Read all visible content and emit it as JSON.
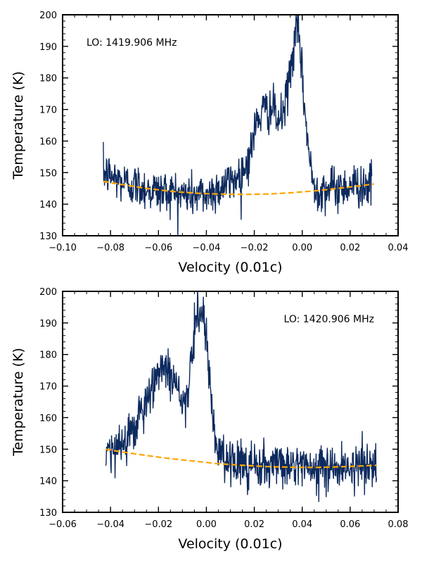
{
  "chart_data": [
    {
      "type": "line",
      "xlabel": "Velocity (0.01c)",
      "ylabel": "Temperature (K)",
      "xlim": [
        -0.1,
        0.04
      ],
      "ylim": [
        130,
        200
      ],
      "xticks": [
        "−0.10",
        "−0.08",
        "−0.06",
        "−0.04",
        "−0.02",
        "0.00",
        "0.02",
        "0.04"
      ],
      "yticks": [
        "130",
        "140",
        "150",
        "160",
        "170",
        "180",
        "190",
        "200"
      ],
      "annotation": "LO: 1419.906 MHz",
      "annotation_position": "top-left",
      "series": [
        {
          "kind": "spectrum",
          "color": "#0d2a5e",
          "x": [
            -0.083,
            -0.08,
            -0.075,
            -0.07,
            -0.065,
            -0.06,
            -0.055,
            -0.05,
            -0.045,
            -0.04,
            -0.035,
            -0.03,
            -0.025,
            -0.022,
            -0.02,
            -0.018,
            -0.015,
            -0.012,
            -0.01,
            -0.008,
            -0.006,
            -0.004,
            -0.003,
            -0.002,
            -0.001,
            0.0,
            0.002,
            0.004,
            0.006,
            0.01,
            0.015,
            0.02,
            0.025,
            0.029
          ],
          "y": [
            150,
            149,
            147,
            146,
            145,
            144,
            144,
            143,
            143,
            143,
            145,
            147,
            150,
            155,
            163,
            168,
            170,
            170,
            166,
            168,
            177,
            187,
            193,
            195,
            190,
            180,
            162,
            148,
            145,
            145,
            145,
            146,
            146,
            146
          ],
          "noise": 3.5
        },
        {
          "kind": "baseline-fit",
          "color": "#ffa500",
          "style": "dashed",
          "x": [
            -0.083,
            -0.075,
            -0.065,
            -0.055,
            -0.045,
            -0.035,
            -0.025,
            -0.015,
            -0.005,
            0.005,
            0.015,
            0.025,
            0.03
          ],
          "y": [
            147.2,
            146.2,
            145.0,
            144.1,
            143.5,
            143.2,
            143.1,
            143.2,
            143.6,
            144.2,
            145.0,
            145.9,
            146.4
          ]
        }
      ]
    },
    {
      "type": "line",
      "xlabel": "Velocity (0.01c)",
      "ylabel": "Temperature (K)",
      "xlim": [
        -0.06,
        0.08
      ],
      "ylim": [
        130,
        200
      ],
      "xticks": [
        "−0.06",
        "−0.04",
        "−0.02",
        "0.00",
        "0.02",
        "0.04",
        "0.06",
        "0.08"
      ],
      "yticks": [
        "130",
        "140",
        "150",
        "160",
        "170",
        "180",
        "190",
        "200"
      ],
      "annotation": "LO: 1420.906 MHz",
      "annotation_position": "top-right",
      "series": [
        {
          "kind": "spectrum",
          "color": "#0d2a5e",
          "x": [
            -0.042,
            -0.038,
            -0.034,
            -0.03,
            -0.026,
            -0.022,
            -0.019,
            -0.016,
            -0.013,
            -0.01,
            -0.008,
            -0.006,
            -0.004,
            -0.002,
            0.0,
            0.002,
            0.004,
            0.008,
            0.015,
            0.025,
            0.035,
            0.045,
            0.055,
            0.065,
            0.071
          ],
          "y": [
            148,
            150,
            153,
            158,
            163,
            170,
            177,
            176,
            172,
            166,
            167,
            180,
            193,
            194,
            186,
            165,
            150,
            146,
            145,
            145,
            145,
            144,
            145,
            145,
            146
          ],
          "noise": 3.5
        },
        {
          "kind": "baseline-fit",
          "color": "#ffa500",
          "style": "dashed",
          "x": [
            -0.042,
            -0.035,
            -0.025,
            -0.015,
            -0.005,
            0.005,
            0.015,
            0.025,
            0.035,
            0.045,
            0.055,
            0.065,
            0.071
          ],
          "y": [
            150.0,
            149.1,
            148.0,
            147.0,
            146.2,
            145.4,
            144.9,
            144.5,
            144.3,
            144.2,
            144.4,
            144.7,
            144.9
          ]
        }
      ]
    }
  ]
}
